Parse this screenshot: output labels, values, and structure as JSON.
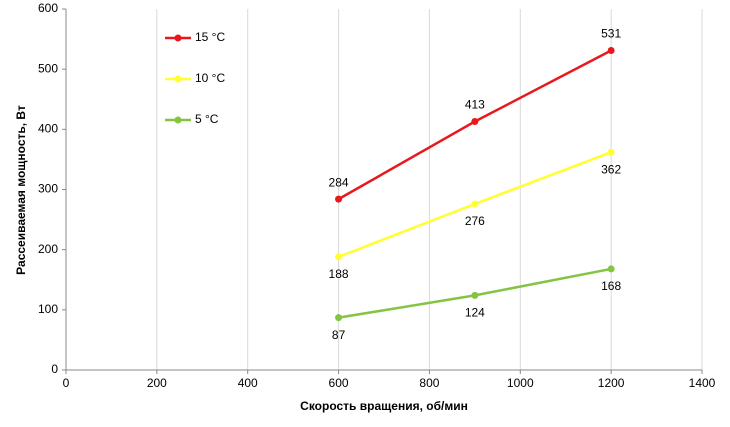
{
  "chart_data": {
    "type": "line",
    "x_label": "Скорость вращения, об/мин",
    "y_label": "Рассеиваемая мощность, Вт",
    "x": [
      600,
      900,
      1200
    ],
    "series": [
      {
        "name": "15 °C",
        "color": "#e8191c",
        "values": [
          284,
          413,
          531
        ],
        "label_position": "above"
      },
      {
        "name": "10 °C",
        "color": "#ffff33",
        "values": [
          188,
          276,
          362
        ],
        "label_position": "below"
      },
      {
        "name": "5 °C",
        "color": "#84c441",
        "values": [
          87,
          124,
          168
        ],
        "label_position": "below"
      }
    ],
    "xlim": [
      0,
      1400
    ],
    "xticks": [
      0,
      200,
      400,
      600,
      800,
      1000,
      1200,
      1400
    ],
    "ylim": [
      0,
      600
    ],
    "yticks": [
      0,
      100,
      200,
      300,
      400,
      500,
      600
    ],
    "grid": "x",
    "legend": "top-left"
  }
}
